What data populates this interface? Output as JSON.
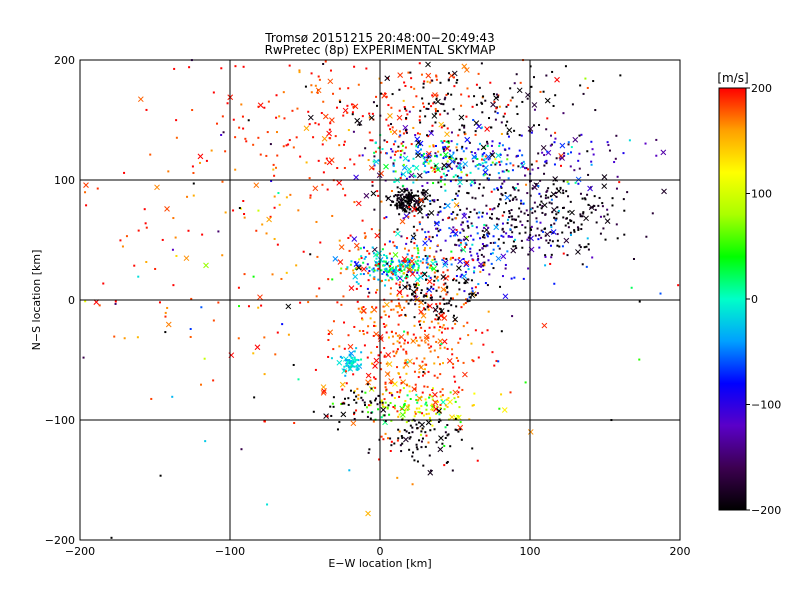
{
  "chart_data": {
    "type": "scatter",
    "title": "Tromsø 20151215 20:48:00−20:49:43",
    "subtitle": "RwPretec (8p) EXPERIMENTAL SKYMAP",
    "xlabel": "E−W location [km]",
    "ylabel": "N−S location [km]",
    "xlim": [
      -200,
      200
    ],
    "ylim": [
      -200,
      200
    ],
    "xticks": [
      -200,
      -100,
      0,
      100,
      200
    ],
    "yticks": [
      -200,
      -100,
      0,
      100,
      200
    ],
    "grid": true,
    "marker_types": [
      "dot",
      "cross"
    ],
    "colorbar": {
      "label": "[m/s]",
      "range": [
        -200,
        200
      ],
      "ticks": [
        200,
        100,
        0,
        -100,
        -200
      ],
      "colormap": [
        "#000000",
        "#3c0050",
        "#5a00c8",
        "#0000ff",
        "#00a0ff",
        "#00ffc8",
        "#00ff00",
        "#aaff00",
        "#ffff00",
        "#ffa000",
        "#ff0000"
      ]
    },
    "clusters": [
      {
        "x": 20,
        "y": 83,
        "spread": [
          7,
          5
        ],
        "count": 160,
        "v": -200,
        "vspread": 10
      },
      {
        "x": 100,
        "y": 70,
        "spread": [
          35,
          18
        ],
        "count": 320,
        "v": -190,
        "vspread": 15
      },
      {
        "x": 40,
        "y": 115,
        "spread": [
          25,
          10
        ],
        "count": 200,
        "v": -30,
        "vspread": 60
      },
      {
        "x": 60,
        "y": 50,
        "spread": [
          30,
          20
        ],
        "count": 200,
        "v": -90,
        "vspread": 40
      },
      {
        "x": 10,
        "y": 28,
        "spread": [
          15,
          6
        ],
        "count": 200,
        "v": -10,
        "vspread": 40
      },
      {
        "x": -20,
        "y": -52,
        "spread": [
          4,
          4
        ],
        "count": 70,
        "v": -15,
        "vspread": 15
      },
      {
        "x": 25,
        "y": -90,
        "spread": [
          20,
          8
        ],
        "count": 120,
        "v": 90,
        "vspread": 40
      },
      {
        "x": 20,
        "y": -25,
        "spread": [
          25,
          45
        ],
        "count": 450,
        "v": 185,
        "vspread": 20
      },
      {
        "x": 0,
        "y": 150,
        "spread": [
          50,
          30
        ],
        "count": 250,
        "v": 190,
        "vspread": 15
      },
      {
        "x": 25,
        "y": -115,
        "spread": [
          15,
          12
        ],
        "count": 80,
        "v": -200,
        "vspread": 10
      },
      {
        "x": -15,
        "y": -88,
        "spread": [
          10,
          8
        ],
        "count": 40,
        "v": -200,
        "vspread": 10
      },
      {
        "x": 40,
        "y": 5,
        "spread": [
          15,
          10
        ],
        "count": 90,
        "v": -200,
        "vspread": 10
      },
      {
        "x": -80,
        "y": 60,
        "spread": [
          70,
          80
        ],
        "count": 200,
        "v": 185,
        "vspread": 20
      },
      {
        "x": 60,
        "y": 160,
        "spread": [
          40,
          20
        ],
        "count": 150,
        "v": -200,
        "vspread": 20
      },
      {
        "x": 100,
        "y": 120,
        "spread": [
          40,
          15
        ],
        "count": 120,
        "v": -110,
        "vspread": 40
      },
      {
        "x": 0,
        "y": 0,
        "spread": [
          120,
          110
        ],
        "count": 150,
        "v": 0,
        "vspread": 200
      }
    ]
  }
}
